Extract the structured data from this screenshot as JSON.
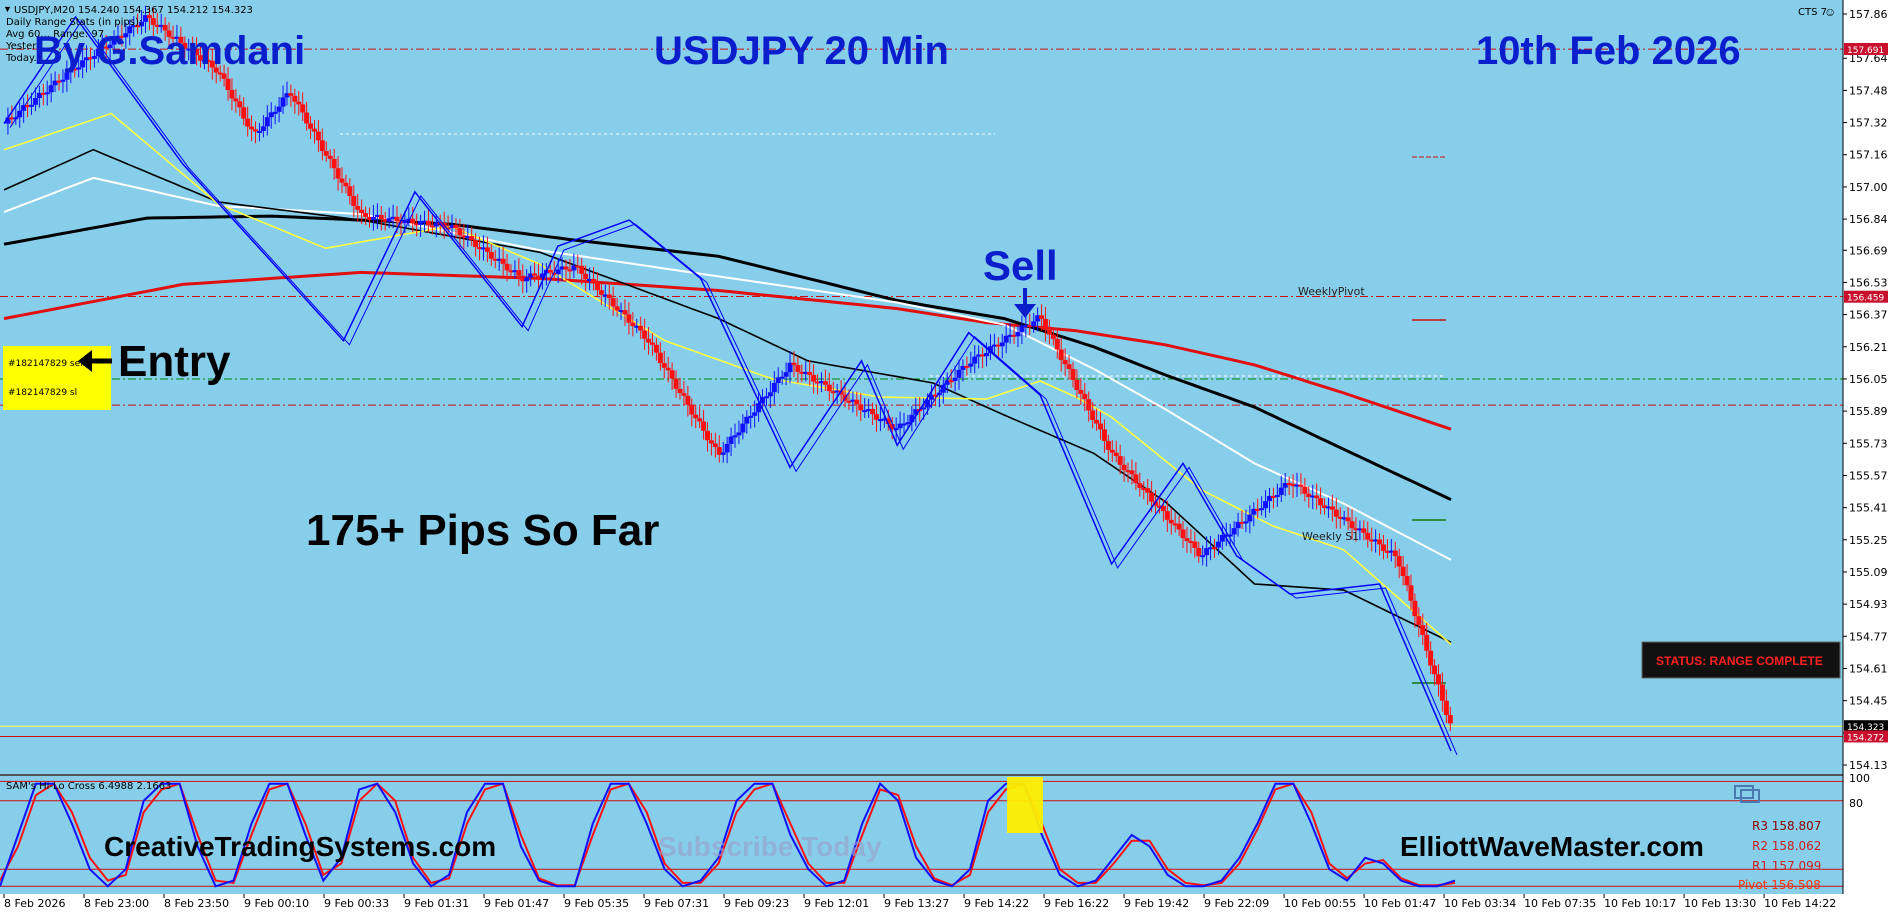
{
  "header": {
    "symbol": "USDJPY,M20",
    "prices": "154.240 154.367 154.212 154.323",
    "range_stats": [
      "Daily Range Stats (in pips):",
      "Avg 60... Range: 97",
      "Yesterd...",
      "Today..."
    ],
    "cts_label": "CTS 7"
  },
  "overlays": {
    "author": "By G.Samdani",
    "title": "USDJPY 20 Min",
    "date": "10th Feb 2026",
    "sell": "Sell",
    "entry": "Entry",
    "pips": "175+ Pips So Far",
    "site_left": "CreativeTradingSystems.com",
    "site_right": "ElliottWaveMaster.com",
    "subscribe": "Subscribe Today",
    "status": "STATUS: RANGE COMPLETE",
    "weekly_pivot": "WeeklyPivot",
    "weekly_s1": "Weekly S1",
    "order_sell": "#182147829 sell",
    "order_sl": "#182147829 sl",
    "osc_label": "SAM's Hi-Lo Cross 6.4988 2.1663"
  },
  "pivots": {
    "r3": "R3 158.807",
    "r2": "R2 158.062",
    "r1": "R1 157.099",
    "pivot": "Pivot 156.508"
  },
  "colors": {
    "background": "#87CEEB",
    "bull": "#1010FF",
    "bear": "#FF1010",
    "ema_red": "#E01010",
    "ema_black": "#000000",
    "ema_white": "#FFFFFF",
    "ema_yellow": "#FFFF40",
    "zigzag": "#0000FF",
    "title_blue": "#0A1ECC"
  },
  "chart_data": {
    "type": "line",
    "title": "USDJPY 20 Min",
    "ylim": [
      154.13,
      157.865
    ],
    "y_ticks": [
      "157.865",
      "157.645",
      "157.485",
      "157.325",
      "157.165",
      "157.005",
      "156.845",
      "156.690",
      "156.530",
      "156.370",
      "156.210",
      "156.050",
      "155.890",
      "155.730",
      "155.570",
      "155.410",
      "155.250",
      "155.090",
      "154.930",
      "154.770",
      "154.610",
      "154.450",
      "154.290",
      "154.130"
    ],
    "x_ticks": [
      "8 Feb 2026",
      "8 Feb 23:00",
      "8 Feb 23:50",
      "9 Feb 00:10",
      "9 Feb 00:33",
      "9 Feb 01:31",
      "9 Feb 01:47",
      "9 Feb 05:35",
      "9 Feb 07:31",
      "9 Feb 09:23",
      "9 Feb 12:01",
      "9 Feb 13:27",
      "9 Feb 14:22",
      "9 Feb 16:22",
      "9 Feb 19:42",
      "9 Feb 22:09",
      "10 Feb 00:55",
      "10 Feb 01:47",
      "10 Feb 03:34",
      "10 Feb 07:35",
      "10 Feb 10:17",
      "10 Feb 13:30",
      "10 Feb 14:22"
    ],
    "price_tags": [
      {
        "label": "157.691",
        "value": 157.691,
        "color": "#C8102E"
      },
      {
        "label": "156.459",
        "value": 156.459,
        "color": "#C8102E"
      },
      {
        "label": "154.323",
        "value": 154.323,
        "color": "#000000"
      },
      {
        "label": "154.272",
        "value": 154.272,
        "color": "#C8102E"
      }
    ],
    "series": [
      {
        "name": "price",
        "x": [
          0,
          4,
          8,
          12,
          14,
          16,
          20,
          25,
          29,
          32,
          36,
          40,
          44,
          50,
          54,
          58,
          62,
          67,
          72,
          78,
          81
        ],
        "values": [
          157.32,
          157.6,
          157.85,
          157.58,
          157.26,
          157.48,
          156.86,
          156.81,
          156.55,
          156.61,
          156.25,
          155.67,
          156.12,
          155.8,
          156.13,
          156.36,
          155.68,
          155.17,
          155.54,
          155.16,
          154.32
        ]
      },
      {
        "name": "ema_red",
        "x": [
          0,
          10,
          20,
          30,
          40,
          50,
          55,
          60,
          65,
          70,
          75,
          81
        ],
        "values": [
          156.35,
          156.52,
          156.58,
          156.55,
          156.49,
          156.4,
          156.33,
          156.29,
          156.22,
          156.12,
          155.98,
          155.8
        ]
      },
      {
        "name": "ema_black",
        "x": [
          0,
          8,
          15,
          25,
          32,
          40,
          50,
          56,
          61,
          65,
          70,
          75,
          81
        ],
        "values": [
          156.72,
          156.85,
          156.86,
          156.82,
          156.74,
          156.66,
          156.44,
          156.35,
          156.21,
          156.07,
          155.91,
          155.7,
          155.45
        ]
      },
      {
        "name": "ema_white",
        "x": [
          0,
          5,
          12,
          20,
          30,
          40,
          50,
          56,
          61,
          65,
          70,
          75,
          81
        ],
        "values": [
          156.88,
          157.05,
          156.91,
          156.87,
          156.69,
          156.56,
          156.43,
          156.32,
          156.1,
          155.9,
          155.63,
          155.43,
          155.15
        ]
      },
      {
        "name": "ema_black_2",
        "x": [
          0,
          5,
          12,
          20,
          30,
          40,
          45,
          52,
          56,
          61,
          65,
          70,
          75,
          81
        ],
        "values": [
          156.99,
          157.19,
          156.93,
          156.84,
          156.68,
          156.35,
          156.14,
          156.03,
          155.87,
          155.68,
          155.44,
          155.03,
          155.0,
          154.74
        ]
      },
      {
        "name": "ema_yellow",
        "x": [
          0,
          6,
          12,
          18,
          25,
          30,
          37,
          43,
          49,
          55,
          58,
          60,
          62,
          67,
          71,
          75,
          81
        ],
        "values": [
          157.19,
          157.37,
          156.92,
          156.7,
          156.81,
          156.62,
          156.24,
          156.05,
          155.96,
          155.95,
          156.04,
          155.96,
          155.86,
          155.5,
          155.32,
          155.2,
          154.73
        ]
      }
    ],
    "zigzag": {
      "x": [
        0,
        4,
        10,
        19,
        23,
        29,
        31,
        35,
        39,
        44,
        48,
        50,
        54,
        58,
        62,
        66,
        69,
        72,
        77,
        81
      ],
      "values": [
        157.32,
        157.85,
        157.12,
        156.24,
        156.98,
        156.31,
        156.71,
        156.84,
        156.55,
        155.61,
        156.14,
        155.72,
        156.28,
        155.97,
        155.13,
        155.63,
        155.17,
        154.98,
        155.03,
        154.2
      ]
    },
    "levels": [
      {
        "name": "weekly_pivot",
        "value": 156.46,
        "color": "#CC1010",
        "style": "dash"
      },
      {
        "name": "entry_sell",
        "value": 156.05,
        "color": "#008800",
        "style": "dash"
      },
      {
        "name": "entry_sl",
        "value": 155.92,
        "color": "#CC1010",
        "style": "dash"
      },
      {
        "name": "top",
        "value": 157.69,
        "color": "#CC1010",
        "style": "dash"
      },
      {
        "name": "current_price",
        "value": 154.323,
        "color": "#FFFF40",
        "style": "solid"
      },
      {
        "name": "ask",
        "value": 154.272,
        "color": "#CC1010",
        "style": "solid"
      }
    ],
    "oscillator": {
      "name": "SAM's Hi-Lo Cross",
      "ylim": [
        0,
        100
      ],
      "tick_labels": [
        "100",
        "80"
      ],
      "levels": [
        80,
        20
      ],
      "blue": [
        5,
        50,
        95,
        95,
        60,
        20,
        5,
        20,
        80,
        95,
        95,
        40,
        5,
        10,
        60,
        95,
        95,
        50,
        10,
        30,
        90,
        95,
        70,
        25,
        5,
        15,
        70,
        95,
        95,
        40,
        10,
        5,
        5,
        60,
        95,
        95,
        60,
        20,
        5,
        10,
        30,
        80,
        95,
        95,
        50,
        20,
        5,
        10,
        60,
        95,
        80,
        30,
        10,
        5,
        20,
        80,
        95,
        95,
        50,
        15,
        5,
        10,
        30,
        50,
        40,
        15,
        5,
        5,
        10,
        30,
        60,
        95,
        95,
        60,
        20,
        10,
        30,
        25,
        10,
        5,
        5,
        10
      ],
      "red": [
        10,
        40,
        85,
        95,
        70,
        30,
        10,
        15,
        70,
        90,
        95,
        50,
        10,
        8,
        50,
        90,
        95,
        60,
        15,
        25,
        80,
        95,
        80,
        30,
        8,
        12,
        60,
        90,
        95,
        50,
        12,
        6,
        6,
        50,
        90,
        95,
        70,
        25,
        8,
        8,
        25,
        70,
        90,
        95,
        60,
        25,
        8,
        8,
        50,
        90,
        85,
        40,
        12,
        6,
        15,
        70,
        90,
        95,
        60,
        20,
        8,
        8,
        25,
        45,
        45,
        20,
        8,
        6,
        8,
        25,
        55,
        90,
        95,
        70,
        25,
        12,
        25,
        28,
        12,
        6,
        6,
        8
      ]
    }
  }
}
